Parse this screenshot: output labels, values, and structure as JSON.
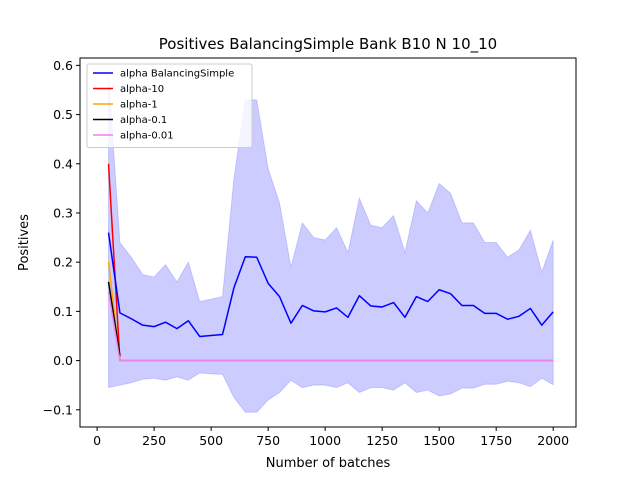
{
  "chart_data": {
    "type": "line",
    "title": "Positives BalancingSimple Bank B10 N 10_10",
    "xlabel": "Number of batches",
    "ylabel": "Positives",
    "xlim": [
      -75,
      2100
    ],
    "ylim": [
      -0.135,
      0.615
    ],
    "x_ticks": [
      0,
      250,
      500,
      750,
      1000,
      1250,
      1500,
      1750,
      2000
    ],
    "y_ticks": [
      -0.1,
      0.0,
      0.1,
      0.2,
      0.3,
      0.4,
      0.5,
      0.6
    ],
    "x_tick_labels": [
      "0",
      "250",
      "500",
      "750",
      "1000",
      "1250",
      "1500",
      "1750",
      "2000"
    ],
    "y_tick_labels": [
      "−0.1",
      "0.0",
      "0.1",
      "0.2",
      "0.3",
      "0.4",
      "0.5",
      "0.6"
    ],
    "grid": false,
    "legend_position": "top-left",
    "band": {
      "color": "#0000ff",
      "opacity": 0.2,
      "x": [
        50,
        100,
        150,
        200,
        250,
        300,
        350,
        400,
        450,
        500,
        550,
        600,
        650,
        700,
        750,
        800,
        850,
        900,
        950,
        1000,
        1050,
        1100,
        1150,
        1200,
        1250,
        1300,
        1350,
        1400,
        1450,
        1500,
        1550,
        1600,
        1650,
        1700,
        1750,
        1800,
        1850,
        1900,
        1950,
        2000
      ],
      "upper": [
        0.58,
        0.24,
        0.21,
        0.175,
        0.17,
        0.195,
        0.16,
        0.2,
        0.12,
        0.125,
        0.13,
        0.37,
        0.53,
        0.53,
        0.39,
        0.32,
        0.19,
        0.28,
        0.25,
        0.245,
        0.27,
        0.22,
        0.33,
        0.275,
        0.27,
        0.295,
        0.22,
        0.325,
        0.3,
        0.36,
        0.34,
        0.28,
        0.28,
        0.24,
        0.24,
        0.21,
        0.225,
        0.265,
        0.18,
        0.245
      ],
      "lower": [
        -0.055,
        -0.05,
        -0.045,
        -0.038,
        -0.036,
        -0.04,
        -0.033,
        -0.04,
        -0.025,
        -0.027,
        -0.028,
        -0.075,
        -0.105,
        -0.105,
        -0.08,
        -0.065,
        -0.04,
        -0.055,
        -0.05,
        -0.05,
        -0.055,
        -0.045,
        -0.065,
        -0.055,
        -0.055,
        -0.06,
        -0.045,
        -0.065,
        -0.06,
        -0.072,
        -0.068,
        -0.056,
        -0.056,
        -0.048,
        -0.048,
        -0.042,
        -0.045,
        -0.053,
        -0.036,
        -0.049
      ]
    },
    "series": [
      {
        "name": "alpha BalancingSimple",
        "color": "#0000ff",
        "x": [
          50,
          100,
          150,
          200,
          250,
          300,
          350,
          400,
          450,
          500,
          550,
          600,
          650,
          700,
          750,
          800,
          850,
          900,
          950,
          1000,
          1050,
          1100,
          1150,
          1200,
          1250,
          1300,
          1350,
          1400,
          1450,
          1500,
          1550,
          1600,
          1650,
          1700,
          1750,
          1800,
          1850,
          1900,
          1950,
          2000
        ],
        "y": [
          0.26,
          0.097,
          0.085,
          0.072,
          0.069,
          0.078,
          0.065,
          0.081,
          0.049,
          0.051,
          0.053,
          0.148,
          0.211,
          0.21,
          0.157,
          0.13,
          0.076,
          0.112,
          0.101,
          0.099,
          0.107,
          0.088,
          0.132,
          0.111,
          0.109,
          0.118,
          0.088,
          0.13,
          0.12,
          0.144,
          0.136,
          0.112,
          0.112,
          0.096,
          0.096,
          0.084,
          0.09,
          0.106,
          0.072,
          0.099
        ]
      },
      {
        "name": "alpha-10",
        "color": "#ff0000",
        "x": [
          50,
          100,
          2000
        ],
        "y": [
          0.4,
          0.0,
          0.0
        ]
      },
      {
        "name": "alpha-1",
        "color": "#ffa500",
        "x": [
          50,
          100,
          2000
        ],
        "y": [
          0.2,
          0.0,
          0.0
        ]
      },
      {
        "name": "alpha-0.1",
        "color": "#000000",
        "x": [
          50,
          100
        ],
        "y": [
          0.16,
          0.01
        ]
      },
      {
        "name": "alpha-0.01",
        "color": "#ee82ee",
        "x": [
          50,
          100,
          2000
        ],
        "y": [
          0.14,
          0.0,
          0.0
        ]
      }
    ]
  }
}
